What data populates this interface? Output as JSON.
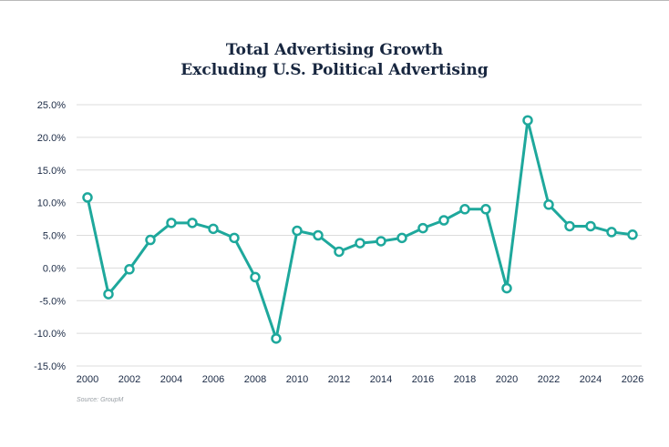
{
  "chart_data": {
    "type": "line",
    "title": [
      "Total Advertising Growth",
      "Excluding U.S. Political Advertising"
    ],
    "xlabel": "",
    "ylabel": "",
    "x": [
      2000,
      2001,
      2002,
      2003,
      2004,
      2005,
      2006,
      2007,
      2008,
      2009,
      2010,
      2011,
      2012,
      2013,
      2014,
      2015,
      2016,
      2017,
      2018,
      2019,
      2020,
      2021,
      2022,
      2023,
      2024,
      2025,
      2026
    ],
    "series": [
      {
        "name": "Total Advertising Growth",
        "values": [
          10.8,
          -4.0,
          -0.2,
          4.3,
          6.9,
          6.9,
          6.0,
          4.6,
          -1.4,
          -10.8,
          5.7,
          5.0,
          2.5,
          3.8,
          4.1,
          4.6,
          6.1,
          7.3,
          9.0,
          9.0,
          -3.1,
          22.6,
          9.7,
          6.4,
          6.4,
          5.5,
          5.1
        ],
        "color": "#1ea89c"
      }
    ],
    "xticks": [
      "2000",
      "2002",
      "2004",
      "2006",
      "2008",
      "2010",
      "2012",
      "2014",
      "2016",
      "2018",
      "2020",
      "2022",
      "2024",
      "2026"
    ],
    "yticks": [
      "25.0%",
      "20.0%",
      "15.0%",
      "10.0%",
      "5.0%",
      "0.0%",
      "-5.0%",
      "-10.0%",
      "-15.0%"
    ],
    "ylim": [
      -15,
      25
    ],
    "xlim": [
      2000,
      2026
    ],
    "grid": true,
    "source": "Source: GroupM"
  }
}
